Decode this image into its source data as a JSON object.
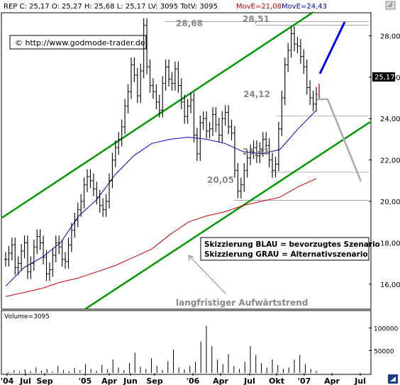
{
  "header": {
    "symbol": "REP",
    "text": "REP C: 25,17 O: 25,27 H: 25,68 L: 25,17 LV: 3095 TotV: 3095",
    "move1": "MovE=21,08",
    "move2": "MovE=24,43",
    "move1_color": "#cc0000",
    "move2_color": "#0000cc"
  },
  "copyright": "© http://www.godmode-trader.de",
  "legend_box": {
    "line1": "Skizzierung BLAU = bevorzugtes Szenario",
    "line2": "Skizzierung GRAU = Alternativszenario"
  },
  "trend_label": "langfristiger Aufwärtstrend",
  "price_labels": {
    "a": "28,68",
    "b": "28,51",
    "c": "24,12",
    "d": "21,41",
    "e": "20,05"
  },
  "last_price": "25,17",
  "volume_label": "Volume=3095",
  "colors": {
    "price_bars": "#000000",
    "ma_short": "#0000cc",
    "ma_long": "#cc0000",
    "trend_channel": "#009900",
    "scenario_blue": "#0000ff",
    "scenario_grey": "#aaaaaa",
    "background": "#ffffff",
    "border": "#000000"
  },
  "chart_data": {
    "type": "line",
    "price_axis": {
      "ylim": [
        15,
        28.7
      ],
      "ticks": [
        "16,00",
        "18,00",
        "20,00",
        "22,00",
        "24,00",
        "26,00",
        "28,00"
      ]
    },
    "volume_axis": {
      "ylim": [
        0,
        120000
      ],
      "ticks": [
        "50000",
        "100000"
      ]
    },
    "x_ticks": [
      "'04",
      "Jul",
      "Sep",
      "'05",
      "Apr",
      "Jun",
      "Sep",
      "'06",
      "Apr",
      "Jul",
      "Okt",
      "'07",
      "Apr",
      "Jul"
    ],
    "price_levels": [
      28.68,
      28.51,
      24.12,
      21.41,
      20.05
    ],
    "series": [
      {
        "name": "Close",
        "values": [
          17.2,
          17.5,
          17.9,
          16.8,
          17.0,
          17.6,
          18.0,
          16.6,
          17.0,
          17.8,
          18.3,
          18.0,
          17.3,
          16.5,
          16.7,
          17.4,
          18.0,
          17.8,
          17.2,
          17.1,
          17.9,
          18.6,
          19.1,
          19.6,
          20.0,
          20.8,
          21.2,
          21.0,
          20.6,
          20.2,
          19.8,
          19.6,
          20.0,
          21.0,
          22.0,
          22.6,
          23.0,
          23.6,
          24.6,
          25.3,
          26.6,
          26.1,
          25.1,
          26.3,
          28.5,
          26.5,
          25.6,
          25.3,
          24.8,
          24.4,
          25.7,
          26.5,
          25.9,
          25.7,
          26.4,
          25.6,
          24.8,
          24.1,
          24.6,
          24.9,
          23.2,
          22.3,
          23.8,
          24.0,
          23.4,
          23.5,
          24.2,
          23.7,
          23.2,
          24.0,
          24.3,
          23.6,
          23.3,
          21.5,
          20.5,
          20.8,
          21.5,
          22.1,
          22.4,
          22.6,
          22.2,
          22.5,
          23.0,
          22.7,
          22.0,
          21.5,
          21.8,
          23.5,
          25.0,
          26.6,
          27.3,
          28.1,
          27.6,
          27.5,
          27.0,
          26.5,
          25.5,
          25.0,
          24.7,
          25.17
        ]
      },
      {
        "name": "MovE=24,43",
        "values": [
          15.9,
          16.8,
          17.3,
          18.0,
          19.3,
          20.1,
          21.3,
          22.2,
          22.8,
          23.0,
          23.1,
          23.0,
          22.8,
          22.4,
          22.3,
          22.5,
          23.5,
          24.4
        ]
      },
      {
        "name": "MovE=21,08",
        "values": [
          15.4,
          15.6,
          15.8,
          16.1,
          16.3,
          16.6,
          16.9,
          17.3,
          17.7,
          18.4,
          19.0,
          19.3,
          19.5,
          19.8,
          20.0,
          20.2,
          20.7,
          21.1
        ]
      },
      {
        "name": "Volume",
        "values": [
          2000,
          6000,
          3000,
          8000,
          4000,
          12000,
          5000,
          9000,
          3000,
          15000,
          7000,
          4000,
          11000,
          6000,
          20000,
          9000,
          5000,
          18000,
          8000,
          30000,
          12000,
          6000,
          22000,
          45000,
          14000,
          9000,
          33000,
          16000,
          7000,
          26000,
          52000,
          12000,
          8000,
          16000,
          25000,
          70000,
          105000,
          60000,
          30000,
          20000,
          42000,
          15000,
          9000,
          25000,
          60000,
          40000,
          22000,
          12000,
          30000,
          18000,
          9000,
          12000,
          30000,
          40000,
          20000,
          9000,
          5000
        ]
      }
    ]
  }
}
